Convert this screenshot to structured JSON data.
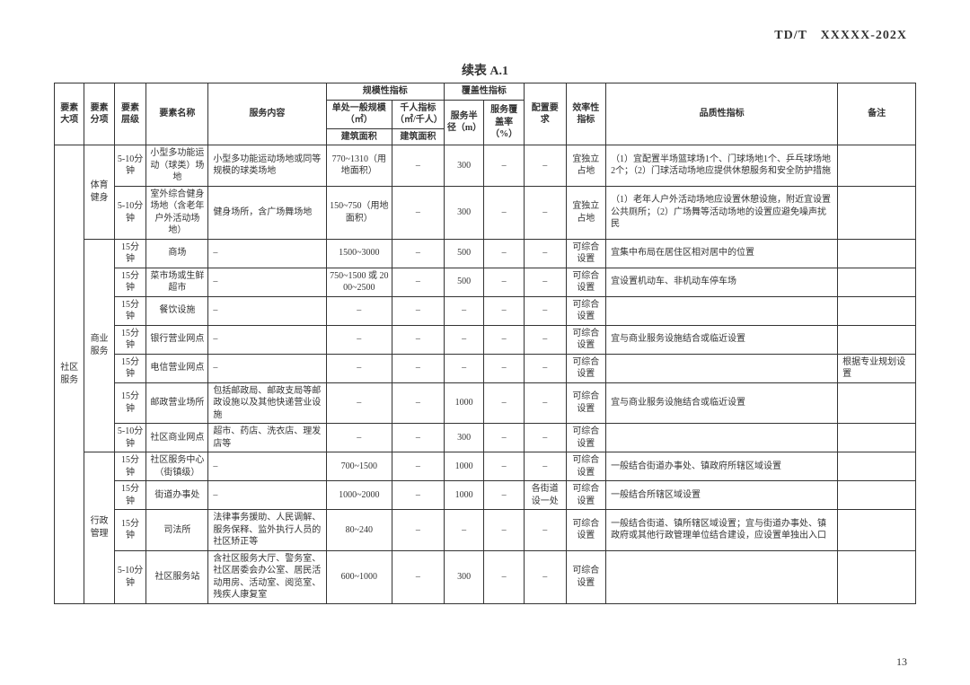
{
  "docId": "TD/T　XXXXX-202X",
  "title": "续表 A.1",
  "pageNum": "13",
  "head": {
    "c1": "要素大项",
    "c2": "要素分项",
    "c3": "要素层级",
    "c4": "要素名称",
    "c5": "服务内容",
    "g_scale": "规模性指标",
    "g_cov": "覆盖性指标",
    "c10": "配置要求",
    "c11": "效率性指标",
    "c12": "品质性指标",
    "c13": "备注",
    "c6a": "单处一般规模（㎡）",
    "c6b": "千人指标（㎡/千人）",
    "c7a": "建筑面积",
    "c7b": "建筑面积",
    "c8": "服务半径（m）",
    "c9": "服务覆盖率（%）"
  },
  "rows": [
    {
      "c1": "社区服务",
      "c2": "体育健身",
      "c3": "5-10分钟",
      "c4": "小型多功能运动（球类）场地",
      "c5": "小型多功能运动场地或同等规模的球类场地",
      "c6": "770~1310（用地面积）",
      "c7": "–",
      "c8": "300",
      "c9": "–",
      "c10": "–",
      "c11": "宜独立占地",
      "c12": "（1）宜配置半场篮球场1个、门球场地1个、乒乓球场地2个；（2）门球活动场地应提供休憩服务和安全防护措施",
      "c13": ""
    },
    {
      "c3": "5-10分钟",
      "c4": "室外综合健身场地（含老年户外活动场地）",
      "c5": "健身场所，含广场舞场地",
      "c6": "150~750（用地面积）",
      "c7": "–",
      "c8": "300",
      "c9": "–",
      "c10": "–",
      "c11": "宜独立占地",
      "c12": "（1）老年人户外活动场地应设置休憩设施，附近宜设置公共厕所；（2）广场舞等活动场地的设置应避免噪声扰民",
      "c13": ""
    },
    {
      "c2": "商业服务",
      "c3": "15分钟",
      "c4": "商场",
      "c5": "–",
      "c6": "1500~3000",
      "c7": "–",
      "c8": "500",
      "c9": "–",
      "c10": "–",
      "c11": "可综合设置",
      "c12": "宜集中布局在居住区相对居中的位置",
      "c13": ""
    },
    {
      "c3": "15分钟",
      "c4": "菜市场或生鲜超市",
      "c5": "–",
      "c6": "750~1500 或 2000~2500",
      "c7": "–",
      "c8": "500",
      "c9": "–",
      "c10": "–",
      "c11": "可综合设置",
      "c12": "宜设置机动车、非机动车停车场",
      "c13": ""
    },
    {
      "c3": "15分钟",
      "c4": "餐饮设施",
      "c5": "–",
      "c6": "–",
      "c7": "–",
      "c8": "–",
      "c9": "–",
      "c10": "–",
      "c11": "可综合设置",
      "c12": "",
      "c13": ""
    },
    {
      "c3": "15分钟",
      "c4": "银行营业网点",
      "c5": "–",
      "c6": "–",
      "c7": "–",
      "c8": "–",
      "c9": "–",
      "c10": "–",
      "c11": "可综合设置",
      "c12": "宜与商业服务设施结合或临近设置",
      "c13": ""
    },
    {
      "c3": "15分钟",
      "c4": "电信营业网点",
      "c5": "–",
      "c6": "–",
      "c7": "–",
      "c8": "–",
      "c9": "–",
      "c10": "–",
      "c11": "可综合设置",
      "c12": "",
      "c13": "根据专业规划设置"
    },
    {
      "c3": "15分钟",
      "c4": "邮政营业场所",
      "c5": "包括邮政局、邮政支局等邮政设施以及其他快递营业设施",
      "c6": "–",
      "c7": "–",
      "c8": "1000",
      "c9": "–",
      "c10": "–",
      "c11": "可综合设置",
      "c12": "宜与商业服务设施结合或临近设置",
      "c13": ""
    },
    {
      "c3": "5-10分钟",
      "c4": "社区商业网点",
      "c5": "超市、药店、洗衣店、理发店等",
      "c6": "–",
      "c7": "–",
      "c8": "300",
      "c9": "–",
      "c10": "–",
      "c11": "可综合设置",
      "c12": "",
      "c13": ""
    },
    {
      "c2": "行政管理",
      "c3": "15分钟",
      "c4": "社区服务中心（街镇级）",
      "c5": "–",
      "c6": "700~1500",
      "c7": "–",
      "c8": "1000",
      "c9": "–",
      "c10": "–",
      "c11": "可综合设置",
      "c12": "一般结合街道办事处、镇政府所辖区域设置",
      "c13": ""
    },
    {
      "c3": "15分钟",
      "c4": "街道办事处",
      "c5": "–",
      "c6": "1000~2000",
      "c7": "–",
      "c8": "1000",
      "c9": "–",
      "c10": "各街道设一处",
      "c11": "可综合设置",
      "c12": "一般结合所辖区域设置",
      "c13": ""
    },
    {
      "c3": "15分钟",
      "c4": "司法所",
      "c5": "法律事务援助、人民调解、服务保释、监外执行人员的社区矫正等",
      "c6": "80~240",
      "c7": "–",
      "c8": "–",
      "c9": "–",
      "c10": "–",
      "c11": "可综合设置",
      "c12": "一般结合街道、镇所辖区域设置；宜与街道办事处、镇政府或其他行政管理单位结合建设，应设置单独出入口",
      "c13": ""
    },
    {
      "c3": "5-10分钟",
      "c4": "社区服务站",
      "c5": "含社区服务大厅、警务室、社区居委会办公室、居民活动用房、活动室、阅览室、残疾人康复室",
      "c6": "600~1000",
      "c7": "–",
      "c8": "300",
      "c9": "–",
      "c10": "–",
      "c11": "可综合设置",
      "c12": "",
      "c13": ""
    }
  ]
}
